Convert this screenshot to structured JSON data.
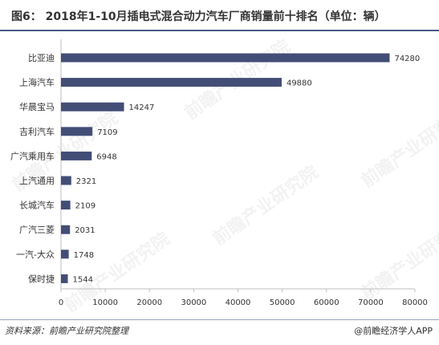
{
  "title": "图6： 2018年1-10月插电式混合动力汽车厂商销量前十排名（单位：辆）",
  "source": "资料来源：前瞻产业研究院整理",
  "credit": "@前瞻经济学人APP",
  "watermark": "前瞻产业研究院",
  "colors": {
    "bar": "#434e77",
    "axis": "#bfbfbf",
    "text": "#333333"
  },
  "chart_data": {
    "type": "bar",
    "orientation": "horizontal",
    "categories": [
      "比亚迪",
      "上海汽车",
      "华晨宝马",
      "吉利汽车",
      "广汽乘用车",
      "上汽通用",
      "长城汽车",
      "广汽三菱",
      "一汽-大众",
      "保时捷"
    ],
    "values": [
      74280,
      49880,
      14247,
      7109,
      6948,
      2321,
      2109,
      2031,
      1748,
      1544
    ],
    "xlim": [
      0,
      80000
    ],
    "xticks": [
      0,
      10000,
      20000,
      30000,
      40000,
      50000,
      60000,
      70000,
      80000
    ],
    "grid": false,
    "data_labels": true
  }
}
